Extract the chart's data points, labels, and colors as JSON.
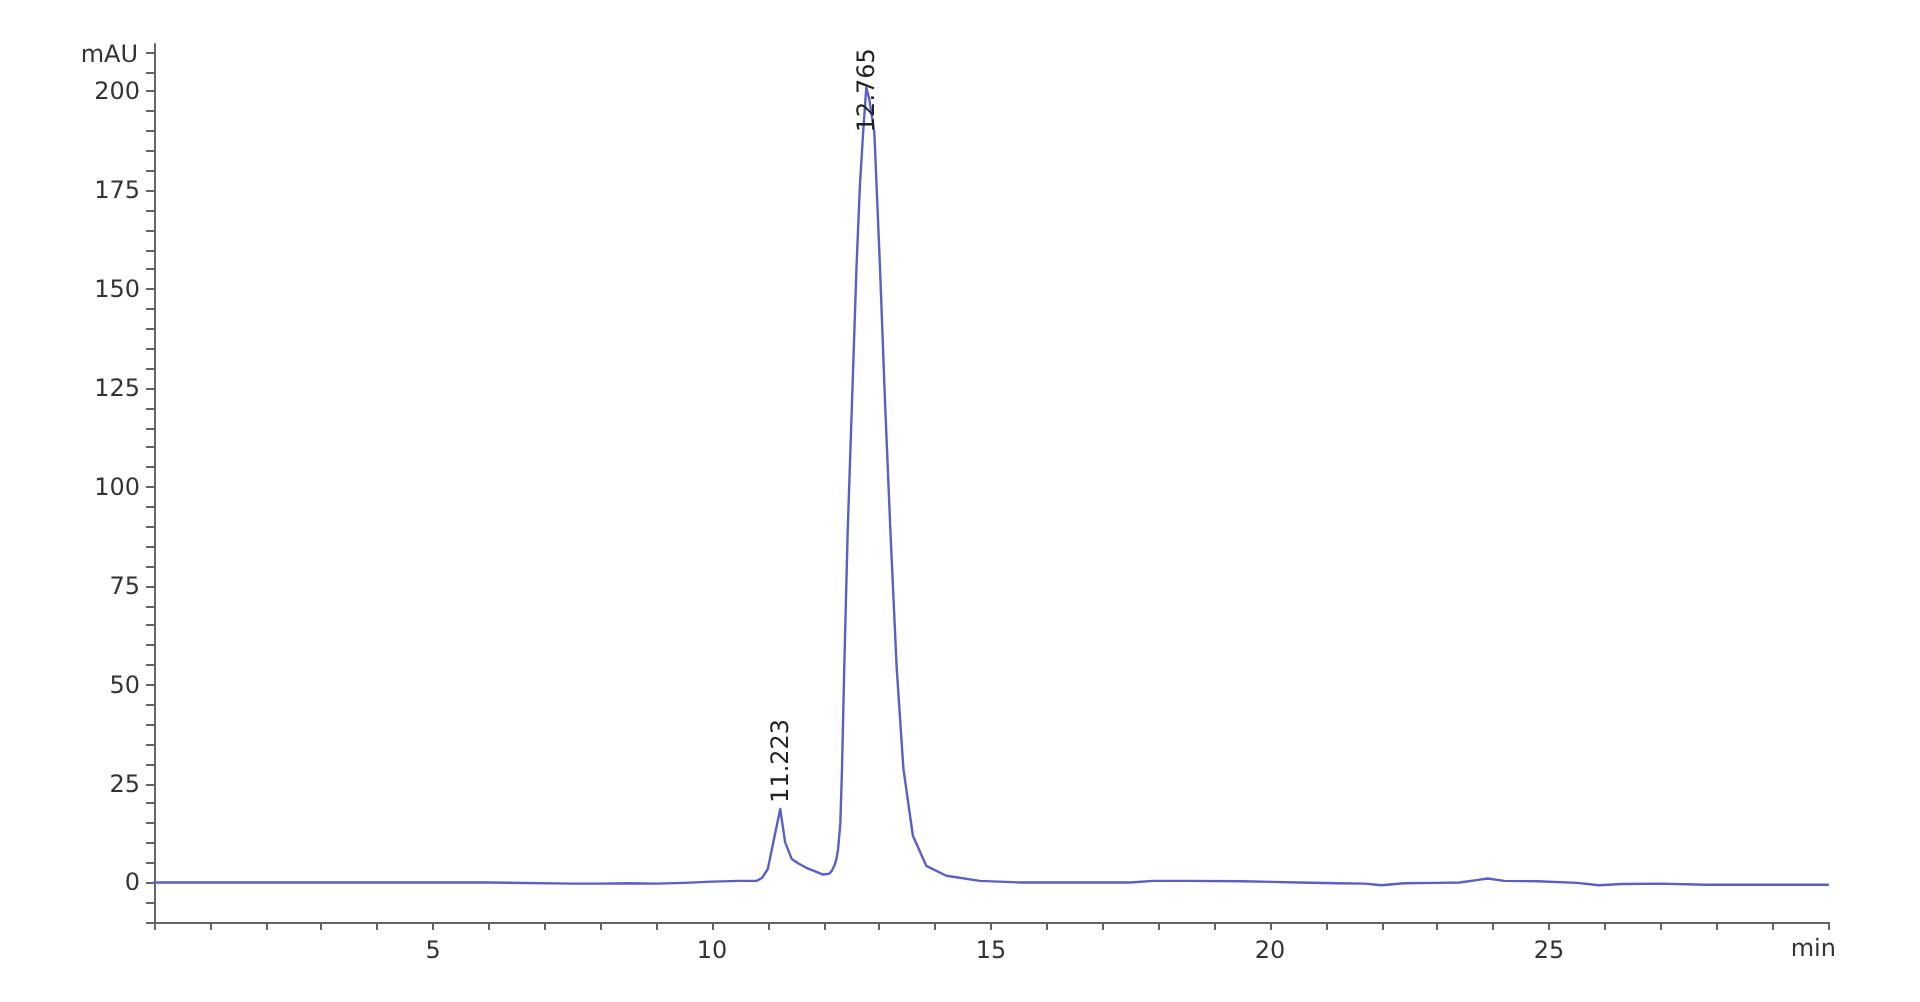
{
  "chart_data": {
    "type": "line",
    "xlabel": "min",
    "ylabel": "mAU",
    "x": [
      0,
      1.8,
      2,
      4,
      6,
      7.5,
      8,
      8.5,
      9,
      9.5,
      10,
      10.5,
      10.8,
      10.9,
      11.0,
      11.1,
      11.223,
      11.31,
      11.43,
      11.55,
      11.69,
      11.85,
      11.99,
      12.1,
      12.15,
      12.2,
      12.23,
      12.26,
      12.3,
      12.33,
      12.37,
      12.43,
      12.51,
      12.59,
      12.65,
      12.71,
      12.765,
      12.82,
      12.91,
      13.01,
      13.1,
      13.2,
      13.31,
      13.43,
      13.6,
      13.84,
      14.2,
      14.8,
      15.5,
      16.5,
      17.5,
      17.9,
      18.5,
      19.5,
      20.5,
      21.2,
      21.7,
      22.0,
      22.4,
      23.0,
      23.4,
      23.7,
      23.9,
      24.2,
      24.8,
      25.5,
      25.9,
      26.3,
      27,
      27.8,
      28.5,
      29.3,
      30
    ],
    "series": [
      {
        "color": "#5b5fc7",
        "values": [
          0,
          0,
          0,
          0,
          0,
          -0.3,
          -0.3,
          -0.2,
          -0.3,
          -0.1,
          0.2,
          0.4,
          0.4,
          1.2,
          3.4,
          10.2,
          18.6,
          10.2,
          5.9,
          4.8,
          3.7,
          2.8,
          2.0,
          2.2,
          3.0,
          4.5,
          5.9,
          8.5,
          15,
          28.8,
          54.2,
          88,
          121.8,
          155.7,
          176,
          190,
          201,
          198,
          189.5,
          155.7,
          121.8,
          88,
          54.2,
          28.8,
          11.8,
          4.2,
          1.7,
          0.4,
          0,
          0,
          0,
          0.4,
          0.4,
          0.3,
          0,
          -0.2,
          -0.3,
          -0.7,
          -0.2,
          -0.1,
          0,
          0.6,
          1.0,
          0.4,
          0.3,
          -0.1,
          -0.7,
          -0.4,
          -0.3,
          -0.6,
          -0.6,
          -0.6,
          -0.6
        ]
      }
    ],
    "xlim": [
      0,
      30
    ],
    "xticks": [
      5,
      10,
      15,
      20,
      25
    ],
    "ylim": [
      -10,
      212
    ],
    "yticks": [
      0,
      25,
      50,
      75,
      100,
      125,
      150,
      175,
      200
    ],
    "annotations": [
      {
        "text": "11.223",
        "x": 11.223,
        "y": 18.6
      },
      {
        "text": "12.765",
        "x": 12.765,
        "y": 201
      }
    ]
  }
}
